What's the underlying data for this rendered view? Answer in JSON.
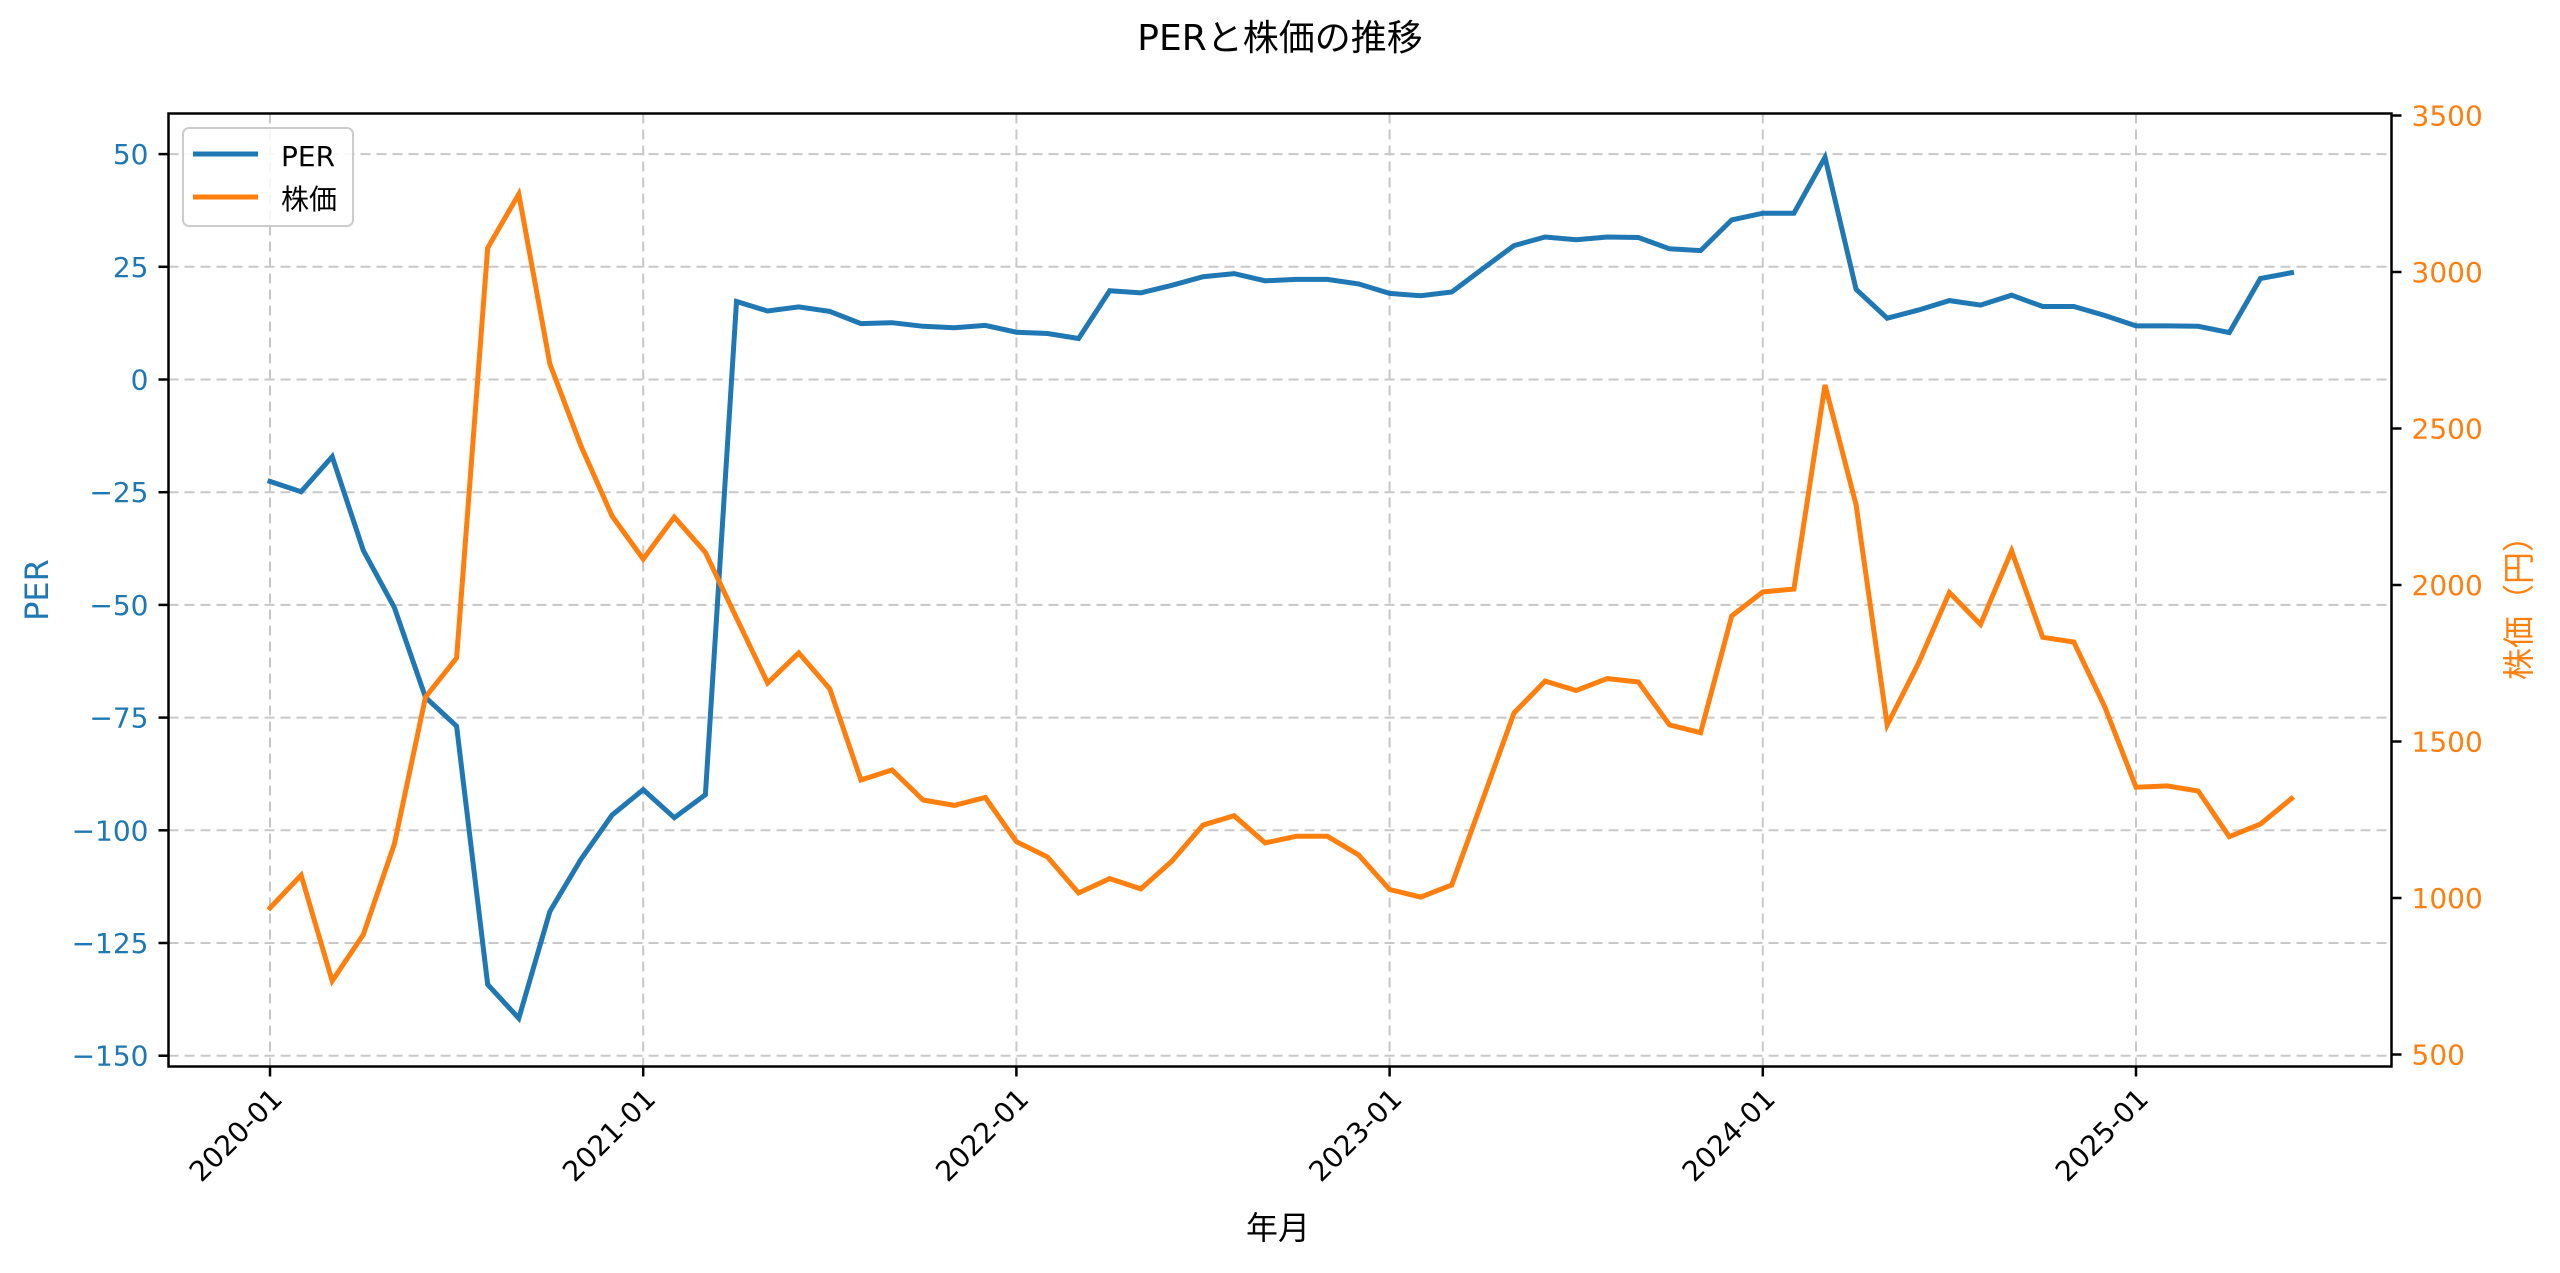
{
  "chart_data": {
    "type": "line",
    "title": "PERと株価の推移",
    "xlabel": "年月",
    "ylabel": "PER",
    "ylabel_right": "株価（円）",
    "grid": true,
    "legend_position": "upper left",
    "x_tick_labels": [
      "2020-01",
      "2021-01",
      "2022-01",
      "2023-01",
      "2024-01",
      "2025-01"
    ],
    "y_ticks_left": [
      -150,
      -125,
      -100,
      -75,
      -50,
      -25,
      0,
      25,
      50
    ],
    "y_ticks_right": [
      500,
      1000,
      1500,
      2000,
      2500,
      3000,
      3500
    ],
    "ylim_left": [
      -153.8,
      58.0
    ],
    "ylim_right": [
      468,
      3518
    ],
    "x": [
      "2020-01",
      "2020-02",
      "2020-03",
      "2020-04",
      "2020-05",
      "2020-06",
      "2020-07",
      "2020-08",
      "2020-09",
      "2020-10",
      "2020-11",
      "2020-12",
      "2021-01",
      "2021-02",
      "2021-03",
      "2021-04",
      "2021-05",
      "2021-06",
      "2021-07",
      "2021-08",
      "2021-09",
      "2021-10",
      "2021-11",
      "2021-12",
      "2022-01",
      "2022-02",
      "2022-03",
      "2022-04",
      "2022-05",
      "2022-06",
      "2022-07",
      "2022-08",
      "2022-09",
      "2022-10",
      "2022-11",
      "2022-12",
      "2023-01",
      "2023-02",
      "2023-03",
      "2023-04",
      "2023-05",
      "2023-06",
      "2023-07",
      "2023-08",
      "2023-09",
      "2023-10",
      "2023-11",
      "2023-12",
      "2024-01",
      "2024-02",
      "2024-03",
      "2024-04",
      "2024-05",
      "2024-06",
      "2024-07",
      "2024-08",
      "2024-09",
      "2024-10",
      "2024-11",
      "2024-12",
      "2025-01",
      "2025-02",
      "2025-03",
      "2025-04",
      "2025-05",
      "2025-06"
    ],
    "series": [
      {
        "name": "PER",
        "axis": "left",
        "color": "#1f77b4",
        "values": [
          -22.6,
          -24.9,
          -17.1,
          -37.9,
          -50.6,
          -70.5,
          -76.9,
          -134.2,
          -141.7,
          -118.0,
          -106.4,
          -96.6,
          -91.0,
          -97.2,
          -92.1,
          17.3,
          15.2,
          16.1,
          15.1,
          12.4,
          12.6,
          11.8,
          11.5,
          12.0,
          10.5,
          10.2,
          9.1,
          19.7,
          19.2,
          20.9,
          22.8,
          23.5,
          21.9,
          22.2,
          22.2,
          21.2,
          19.1,
          18.6,
          19.4,
          24.6,
          29.7,
          31.6,
          31.0,
          31.6,
          31.5,
          29.0,
          28.6,
          35.4,
          36.9,
          36.9,
          49.3,
          20.0,
          13.6,
          15.4,
          17.5,
          16.5,
          18.7,
          16.2,
          16.2,
          14.2,
          11.9,
          11.9,
          11.8,
          10.4,
          22.4,
          23.7
        ]
      },
      {
        "name": "株価",
        "axis": "right",
        "color": "#ff7f0e",
        "values": [
          968,
          1073,
          735,
          883,
          1173,
          1642,
          1767,
          3077,
          3249,
          2706,
          2444,
          2220,
          2083,
          2217,
          2104,
          1895,
          1687,
          1783,
          1668,
          1377,
          1409,
          1313,
          1296,
          1321,
          1180,
          1131,
          1016,
          1062,
          1029,
          1118,
          1233,
          1263,
          1176,
          1197,
          1197,
          1138,
          1027,
          1003,
          1042,
          1316,
          1591,
          1693,
          1663,
          1701,
          1690,
          1553,
          1528,
          1901,
          1978,
          1987,
          2639,
          2256,
          1553,
          1749,
          1976,
          1874,
          2109,
          1833,
          1818,
          1610,
          1354,
          1358,
          1342,
          1196,
          1236,
          1318
        ]
      }
    ]
  },
  "colors": {
    "per": "#1f77b4",
    "price": "#ff7f0e",
    "grid": "#c8c8c8",
    "axis": "#000000"
  }
}
